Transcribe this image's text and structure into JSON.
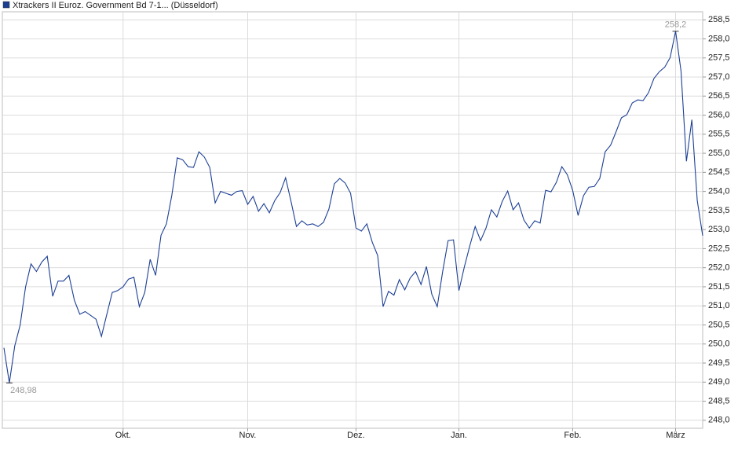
{
  "chart_data": {
    "type": "line",
    "categories": [
      null,
      null,
      null,
      null,
      null,
      null,
      null,
      null,
      null,
      null,
      null,
      null,
      null,
      null,
      null,
      null,
      null,
      null,
      null,
      null,
      null,
      null,
      "Okt.",
      null,
      null,
      null,
      null,
      null,
      null,
      null,
      null,
      null,
      null,
      null,
      null,
      null,
      null,
      null,
      null,
      null,
      null,
      null,
      null,
      null,
      null,
      "Nov.",
      null,
      null,
      null,
      null,
      null,
      null,
      null,
      null,
      null,
      null,
      null,
      null,
      null,
      null,
      null,
      null,
      null,
      null,
      null,
      "Dez.",
      null,
      null,
      null,
      null,
      null,
      null,
      null,
      null,
      null,
      null,
      null,
      null,
      null,
      null,
      null,
      null,
      null,
      null,
      "Jan.",
      null,
      null,
      null,
      null,
      null,
      null,
      null,
      null,
      null,
      null,
      null,
      null,
      null,
      null,
      null,
      null,
      null,
      null,
      null,
      null,
      "Feb.",
      null,
      null,
      null,
      null,
      null,
      null,
      null,
      null,
      null,
      null,
      null,
      null,
      null,
      null,
      null,
      null,
      null,
      null,
      "März",
      null,
      null,
      null,
      null,
      null
    ],
    "series": [
      {
        "name": "Xtrackers II Euroz. Government Bd 7-1... (Düsseldorf)",
        "color": "#1c3f94",
        "values": [
          249.9,
          248.98,
          249.95,
          250.5,
          251.5,
          252.1,
          251.9,
          252.15,
          252.3,
          251.25,
          251.65,
          251.65,
          251.8,
          251.15,
          250.78,
          250.85,
          250.75,
          250.65,
          250.2,
          250.78,
          251.35,
          251.4,
          251.5,
          251.7,
          251.75,
          250.98,
          251.35,
          252.22,
          251.8,
          252.85,
          253.15,
          253.9,
          254.88,
          254.83,
          254.65,
          254.63,
          255.04,
          254.9,
          254.63,
          253.7,
          254.0,
          253.95,
          253.9,
          254.0,
          254.02,
          253.66,
          253.87,
          253.48,
          253.68,
          253.44,
          253.76,
          253.97,
          254.36,
          253.74,
          253.08,
          253.23,
          253.12,
          253.15,
          253.08,
          253.19,
          253.54,
          254.2,
          254.34,
          254.22,
          253.95,
          253.04,
          252.96,
          253.15,
          252.67,
          252.32,
          250.98,
          251.38,
          251.28,
          251.69,
          251.42,
          251.73,
          251.9,
          251.56,
          252.03,
          251.3,
          250.98,
          251.9,
          252.71,
          252.73,
          251.4,
          252.02,
          252.57,
          253.08,
          252.71,
          253.04,
          253.52,
          253.33,
          253.74,
          254.01,
          253.52,
          253.7,
          253.25,
          253.04,
          253.23,
          253.17,
          254.03,
          253.99,
          254.24,
          254.65,
          254.44,
          254.03,
          253.37,
          253.89,
          254.11,
          254.13,
          254.34,
          255.04,
          255.21,
          255.56,
          255.93,
          256.01,
          256.32,
          256.4,
          256.38,
          256.59,
          256.96,
          257.14,
          257.26,
          257.51,
          258.2,
          257.16,
          254.79,
          255.88,
          253.76,
          252.84
        ],
        "value_labels": [
          null,
          "248,98",
          null,
          null,
          null,
          null,
          null,
          null,
          null,
          null,
          null,
          null,
          null,
          null,
          null,
          null,
          null,
          null,
          null,
          null,
          null,
          null,
          null,
          null,
          null,
          null,
          null,
          null,
          null,
          null,
          null,
          null,
          null,
          null,
          null,
          null,
          null,
          null,
          null,
          null,
          null,
          null,
          null,
          null,
          null,
          null,
          null,
          null,
          null,
          null,
          null,
          null,
          null,
          null,
          null,
          null,
          null,
          null,
          null,
          null,
          null,
          null,
          null,
          null,
          null,
          null,
          null,
          null,
          null,
          null,
          null,
          null,
          null,
          null,
          null,
          null,
          null,
          null,
          null,
          null,
          null,
          null,
          null,
          null,
          null,
          null,
          null,
          null,
          null,
          null,
          null,
          null,
          null,
          null,
          null,
          null,
          null,
          null,
          null,
          null,
          null,
          null,
          null,
          null,
          null,
          null,
          null,
          null,
          null,
          null,
          null,
          null,
          null,
          null,
          null,
          null,
          null,
          null,
          null,
          null,
          null,
          null,
          null,
          null,
          "258,2",
          null,
          null,
          null,
          null,
          null
        ]
      }
    ],
    "ylim": [
      247.79,
      258.71
    ],
    "yticks": [
      {
        "value": 248.0,
        "label": "248,0"
      },
      {
        "value": 248.5,
        "label": "248,5"
      },
      {
        "value": 249.0,
        "label": "249,0"
      },
      {
        "value": 249.5,
        "label": "249,5"
      },
      {
        "value": 250.0,
        "label": "250,0"
      },
      {
        "value": 250.5,
        "label": "250,5"
      },
      {
        "value": 251.0,
        "label": "251,0"
      },
      {
        "value": 251.5,
        "label": "251,5"
      },
      {
        "value": 252.0,
        "label": "252,0"
      },
      {
        "value": 252.5,
        "label": "252,5"
      },
      {
        "value": 253.0,
        "label": "253,0"
      },
      {
        "value": 253.5,
        "label": "253,5"
      },
      {
        "value": 254.0,
        "label": "254,0"
      },
      {
        "value": 254.5,
        "label": "254,5"
      },
      {
        "value": 255.0,
        "label": "255,0"
      },
      {
        "value": 255.5,
        "label": "255,5"
      },
      {
        "value": 256.0,
        "label": "256,0"
      },
      {
        "value": 256.5,
        "label": "256,5"
      },
      {
        "value": 257.0,
        "label": "257,0"
      },
      {
        "value": 257.5,
        "label": "257,5"
      },
      {
        "value": 258.0,
        "label": "258,0"
      },
      {
        "value": 258.5,
        "label": "258,5"
      }
    ],
    "grid": true
  }
}
